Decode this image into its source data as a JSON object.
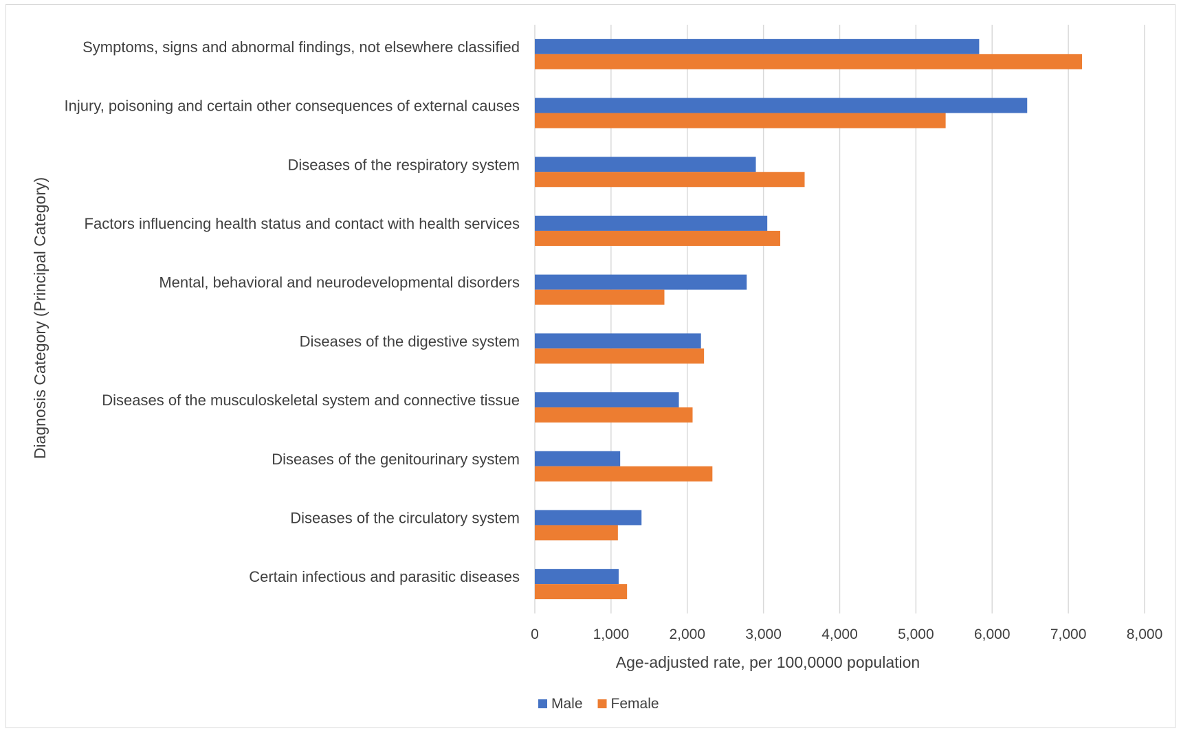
{
  "chart_data": {
    "type": "bar",
    "orientation": "horizontal",
    "title": "",
    "xlabel": "Age-adjusted rate, per 100,0000 population",
    "ylabel": "Diagnosis Category (Principal Category)",
    "xlim": [
      0,
      8000
    ],
    "xticks": [
      0,
      1000,
      2000,
      3000,
      4000,
      5000,
      6000,
      7000,
      8000
    ],
    "xtick_labels": [
      "0",
      "1,000",
      "2,000",
      "3,000",
      "4,000",
      "5,000",
      "6,000",
      "7,000",
      "8,000"
    ],
    "grid": true,
    "legend_position": "bottom",
    "categories": [
      "Symptoms, signs and abnormal findings, not elsewhere classified",
      "Injury, poisoning and certain other consequences of external causes",
      "Diseases of the respiratory system",
      "Factors influencing health status and contact with health services",
      "Mental, behavioral and neurodevelopmental disorders",
      "Diseases of the digestive system",
      "Diseases of the musculoskeletal system and connective tissue",
      "Diseases of the genitourinary system",
      "Diseases of the circulatory system",
      "Certain infectious and parasitic diseases"
    ],
    "series": [
      {
        "name": "Male",
        "color": "#4472C4",
        "values": [
          5830,
          6460,
          2900,
          3050,
          2780,
          2180,
          1890,
          1120,
          1400,
          1100
        ]
      },
      {
        "name": "Female",
        "color": "#ED7D31",
        "values": [
          7180,
          5390,
          3540,
          3220,
          1700,
          2220,
          2070,
          2330,
          1090,
          1210
        ]
      }
    ]
  }
}
